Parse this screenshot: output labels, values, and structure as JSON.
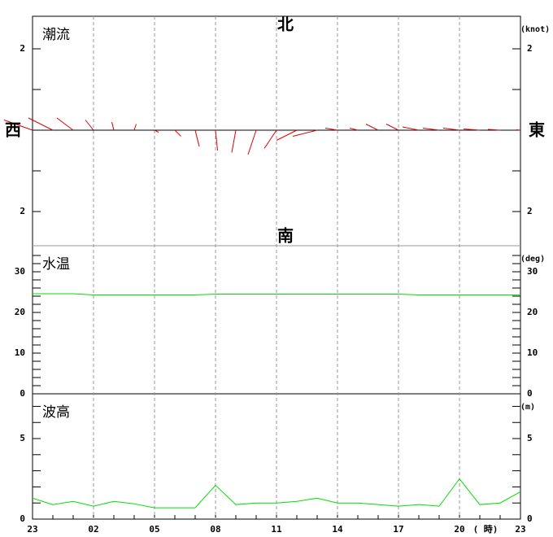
{
  "chart_data": [
    {
      "type": "vector",
      "title": "潮流",
      "unit": "(knot)",
      "color": "#e00000",
      "north": "北",
      "south": "南",
      "west": "西",
      "east": "東",
      "u": [
        -0.7,
        -0.6,
        -0.4,
        -0.2,
        -0.05,
        0.05,
        0.1,
        0.15,
        0.1,
        0.05,
        -0.1,
        -0.2,
        -0.3,
        -0.5,
        -0.6,
        -0.3,
        -0.2,
        -0.3,
        -0.3,
        -0.4,
        -0.4,
        -0.4,
        -0.4,
        -0.3,
        -0.1
      ],
      "v": [
        0.25,
        0.3,
        0.3,
        0.25,
        0.2,
        0.15,
        -0.05,
        -0.15,
        -0.4,
        -0.5,
        -0.55,
        -0.6,
        -0.45,
        -0.25,
        -0.15,
        0.05,
        0.05,
        0.15,
        0.15,
        0.08,
        0.05,
        0.05,
        0.03,
        0.02,
        0.01
      ],
      "ylim": [
        -2.84,
        2.8
      ],
      "yticks": [
        {
          "value": 2,
          "label": "2"
        },
        {
          "value": -2,
          "label": "2"
        }
      ],
      "minor_yticks": [
        -1,
        1
      ]
    },
    {
      "type": "line",
      "title": "水温",
      "unit": "(deg)",
      "color": "#00e000",
      "values": [
        24.6,
        24.6,
        24.6,
        24.3,
        24.3,
        24.3,
        24.3,
        24.3,
        24.3,
        24.5,
        24.5,
        24.5,
        24.5,
        24.5,
        24.5,
        24.5,
        24.5,
        24.5,
        24.5,
        24.3,
        24.3,
        24.3,
        24.3,
        24.3,
        24.3
      ],
      "ylim": [
        0,
        36.4
      ],
      "yticks": [
        0,
        10,
        20,
        30
      ],
      "minor_yticks": [
        2,
        4,
        6,
        8,
        12,
        14,
        16,
        18,
        22,
        24,
        26,
        28,
        32,
        34
      ]
    },
    {
      "type": "line",
      "title": "波高",
      "unit": "(m)",
      "color": "#00e000",
      "values": [
        1.3,
        0.9,
        1.1,
        0.8,
        1.1,
        0.95,
        0.7,
        0.7,
        0.7,
        2.1,
        0.9,
        1.0,
        1.0,
        1.1,
        1.3,
        1.0,
        1.0,
        0.9,
        0.8,
        0.9,
        0.8,
        2.5,
        0.9,
        1.0,
        1.7
      ],
      "ylim": [
        0,
        7.78
      ],
      "yticks": [
        0,
        5
      ],
      "minor_yticks": [
        1,
        2,
        3,
        4,
        6,
        7
      ],
      "categories": [
        "23",
        null,
        null,
        "02",
        null,
        null,
        "05",
        null,
        null,
        "08",
        null,
        null,
        "11",
        null,
        null,
        "14",
        null,
        null,
        "17",
        null,
        null,
        "20",
        null,
        null,
        "23"
      ],
      "x_unit": "( 時)"
    }
  ]
}
